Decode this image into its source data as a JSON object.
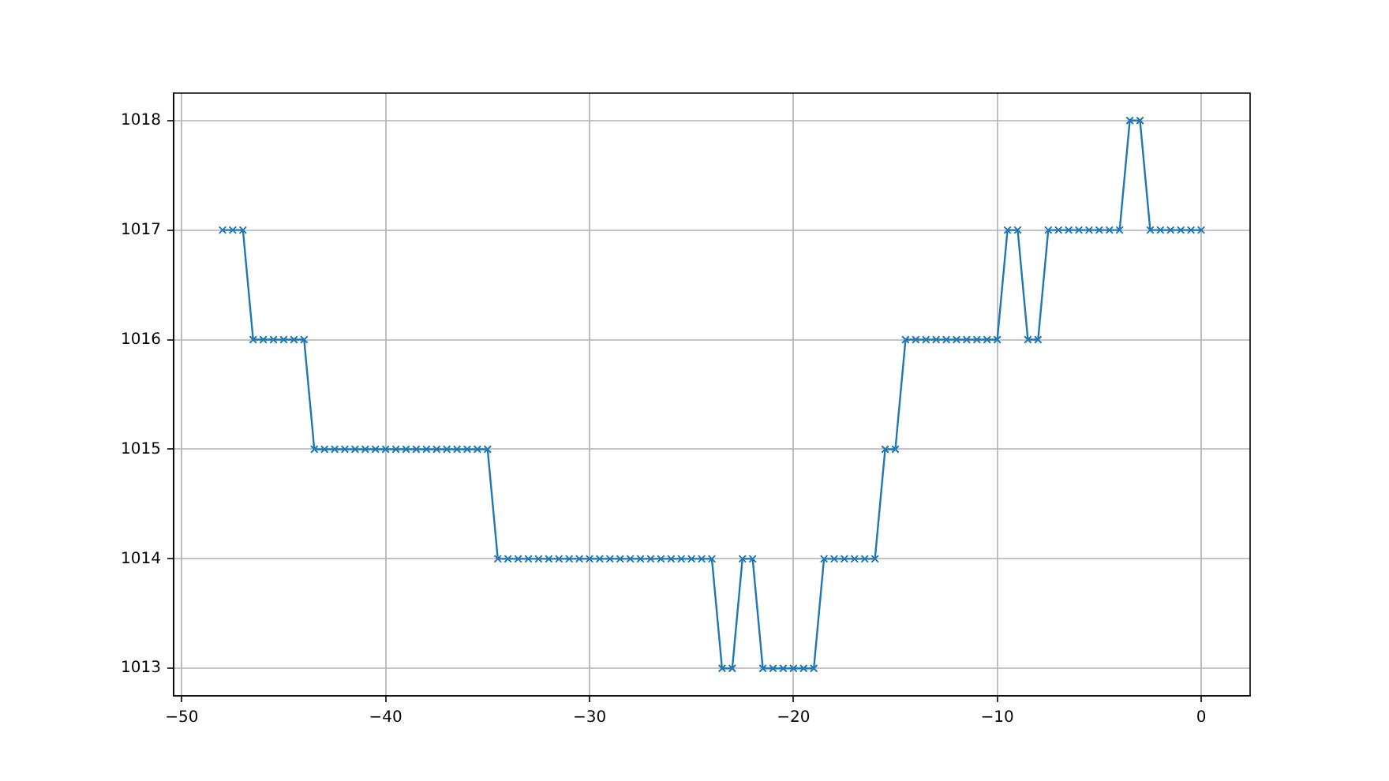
{
  "chart_data": {
    "type": "line",
    "x": [
      -48,
      -47.5,
      -47,
      -46.5,
      -46,
      -45.5,
      -45,
      -44.5,
      -44,
      -43.5,
      -43,
      -42.5,
      -42,
      -41.5,
      -41,
      -40.5,
      -40,
      -39.5,
      -39,
      -38.5,
      -38,
      -37.5,
      -37,
      -36.5,
      -36,
      -35.5,
      -35,
      -34.5,
      -34,
      -33.5,
      -33,
      -32.5,
      -32,
      -31.5,
      -31,
      -30.5,
      -30,
      -29.5,
      -29,
      -28.5,
      -28,
      -27.5,
      -27,
      -26.5,
      -26,
      -25.5,
      -25,
      -24.5,
      -24,
      -23.5,
      -23,
      -22.5,
      -22,
      -21.5,
      -21,
      -20.5,
      -20,
      -19.5,
      -19,
      -18.5,
      -18,
      -17.5,
      -17,
      -16.5,
      -16,
      -15.5,
      -15,
      -14.5,
      -14,
      -13.5,
      -13,
      -12.5,
      -12,
      -11.5,
      -11,
      -10.5,
      -10,
      -9.5,
      -9,
      -8.5,
      -8,
      -7.5,
      -7,
      -6.5,
      -6,
      -5.5,
      -5,
      -4.5,
      -4,
      -3.5,
      -3,
      -2.5,
      -2,
      -1.5,
      -1,
      -0.5,
      0
    ],
    "series": [
      {
        "color": "#1f77b4",
        "values": [
          1017,
          1017,
          1017,
          1016,
          1016,
          1016,
          1016,
          1016,
          1016,
          1015,
          1015,
          1015,
          1015,
          1015,
          1015,
          1015,
          1015,
          1015,
          1015,
          1015,
          1015,
          1015,
          1015,
          1015,
          1015,
          1015,
          1015,
          1014,
          1014,
          1014,
          1014,
          1014,
          1014,
          1014,
          1014,
          1014,
          1014,
          1014,
          1014,
          1014,
          1014,
          1014,
          1014,
          1014,
          1014,
          1014,
          1014,
          1014,
          1014,
          1013,
          1013,
          1014,
          1014,
          1013,
          1013,
          1013,
          1013,
          1013,
          1013,
          1014,
          1014,
          1014,
          1014,
          1014,
          1014,
          1015,
          1015,
          1016,
          1016,
          1016,
          1016,
          1016,
          1016,
          1016,
          1016,
          1016,
          1016,
          1017,
          1017,
          1016,
          1016,
          1017,
          1017,
          1017,
          1017,
          1017,
          1017,
          1017,
          1017,
          1018,
          1018,
          1017,
          1017,
          1017,
          1017,
          1017,
          1017
        ]
      }
    ],
    "xlim": [
      -50.4,
      2.4
    ],
    "ylim": [
      1012.75,
      1018.25
    ],
    "xticks": [
      {
        "value": -50,
        "label": "−50"
      },
      {
        "value": -40,
        "label": "−40"
      },
      {
        "value": -30,
        "label": "−30"
      },
      {
        "value": -20,
        "label": "−20"
      },
      {
        "value": -10,
        "label": "−10"
      },
      0
    ],
    "yticks": [
      1013,
      1014,
      1015,
      1016,
      1017,
      1018
    ],
    "grid": true,
    "marker": "cross",
    "line_style": "solid",
    "legend": false
  }
}
